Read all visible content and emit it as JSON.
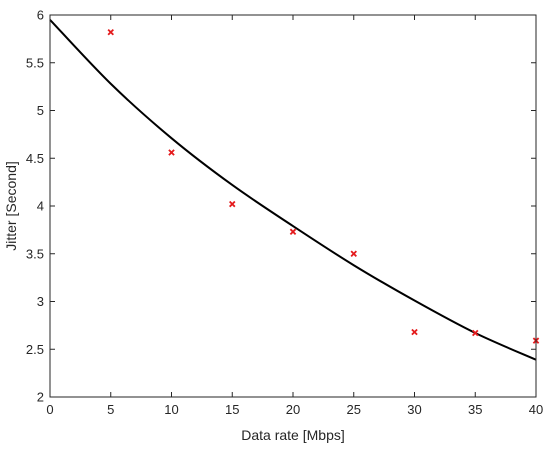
{
  "chart_data": {
    "type": "scatter",
    "title": "",
    "xlabel": "Data rate [Mbps]",
    "ylabel": "Jitter [Second]",
    "xlim": [
      0,
      40
    ],
    "ylim": [
      2,
      6
    ],
    "grid": false,
    "box": true,
    "x_ticks": [
      0,
      5,
      10,
      15,
      20,
      25,
      30,
      35,
      40
    ],
    "y_ticks": [
      2,
      2.5,
      3,
      3.5,
      4,
      4.5,
      5,
      5.5,
      6
    ],
    "x_tick_labels": [
      "0",
      "5",
      "10",
      "15",
      "20",
      "25",
      "30",
      "35",
      "40"
    ],
    "y_tick_labels": [
      "2",
      "2.5",
      "3",
      "3.5",
      "4",
      "4.5",
      "5",
      "5.5",
      "6"
    ],
    "series": [
      {
        "kind": "scatter",
        "marker": "x",
        "color": "#e41a1c",
        "x": [
          5,
          10,
          15,
          20,
          25,
          30,
          35,
          40
        ],
        "y": [
          5.82,
          4.56,
          4.02,
          3.73,
          3.5,
          2.68,
          2.67,
          2.59
        ]
      },
      {
        "kind": "line",
        "color": "#000000",
        "x": [
          0,
          5,
          10,
          15,
          20,
          25,
          30,
          35,
          40
        ],
        "y": [
          5.95,
          5.28,
          4.71,
          4.22,
          3.79,
          3.38,
          3.01,
          2.67,
          2.39
        ]
      }
    ]
  }
}
